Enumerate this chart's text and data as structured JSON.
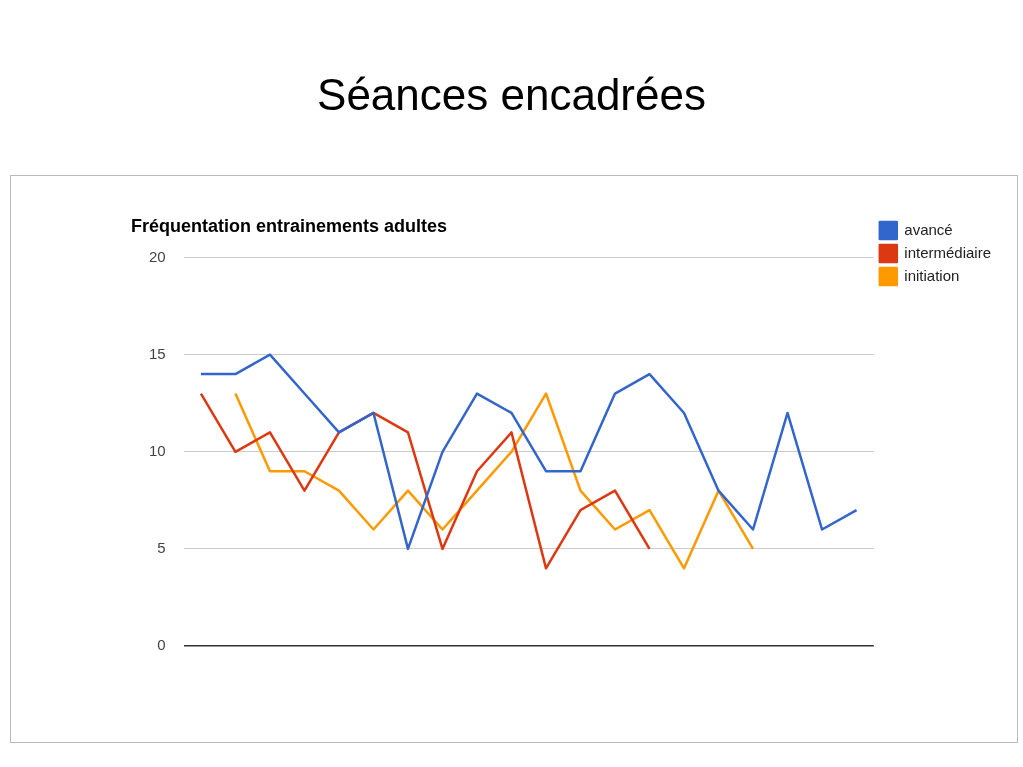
{
  "chart_data": {
    "type": "line",
    "title": "Séances encadrées",
    "subtitle": "Fréquentation entrainements adultes",
    "categories": [
      null,
      null,
      null,
      null,
      null,
      null,
      null,
      null,
      null,
      null,
      null,
      null,
      null,
      null,
      null,
      null,
      null,
      null,
      null,
      null
    ],
    "series": [
      {
        "name": "avancé",
        "color": "#3366cc",
        "values": [
          14,
          14,
          15,
          13,
          11,
          12,
          5,
          10,
          13,
          12,
          9,
          9,
          13,
          14,
          12,
          8,
          6,
          12,
          6,
          7
        ]
      },
      {
        "name": "intermédiaire",
        "color": "#dc3912",
        "values": [
          13,
          10,
          11,
          8,
          11,
          12,
          11,
          5,
          9,
          11,
          4,
          7,
          8,
          5,
          null,
          null,
          null,
          null,
          null,
          null
        ]
      },
      {
        "name": "initiation",
        "color": "#ff9900",
        "values": [
          null,
          13,
          9,
          9,
          8,
          6,
          8,
          6,
          8,
          10,
          13,
          8,
          6,
          7,
          4,
          8,
          5,
          null,
          null,
          null
        ]
      }
    ],
    "ylim": [
      0,
      20
    ],
    "yticks": [
      0,
      5,
      10,
      15,
      20
    ],
    "grid": "y",
    "legend": "right",
    "tick_labels": "y",
    "marker": "none",
    "line_style": "solid"
  }
}
